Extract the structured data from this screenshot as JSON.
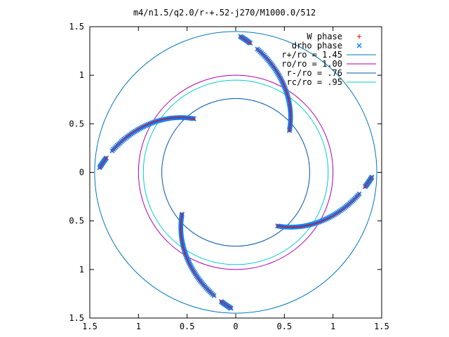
{
  "chart_data": {
    "type": "scatter",
    "title": "m4/n1.5/q2.0/r-+.52-j270/M1000.0/512",
    "xlim": [
      -1.5,
      1.5
    ],
    "ylim": [
      -1.5,
      1.5
    ],
    "x_tick_values": [
      -1.5,
      -1,
      -0.5,
      0,
      0.5,
      1,
      1.5
    ],
    "x_tick_labels": [
      "1.5",
      "1",
      "0.5",
      "0",
      "0.5",
      "1",
      "1.5"
    ],
    "y_tick_values": [
      1.5,
      1,
      0.5,
      0,
      -0.5,
      -1,
      -1.5
    ],
    "y_tick_labels": [
      "1.5",
      "1",
      "0.5",
      "0",
      "0.5",
      "1",
      "1.5"
    ],
    "grid": false,
    "legend_position": "top-right",
    "series": [
      {
        "name": "W phase",
        "marker": "plus",
        "color": "#ff0000"
      },
      {
        "name": "drho phase",
        "marker": "cross",
        "color": "#0080ff"
      }
    ],
    "circles": [
      {
        "name": "r+/ro = 1.45",
        "radius": 1.45,
        "color": "#0077bb"
      },
      {
        "name": "ro/ro = 1.00",
        "radius": 1.0,
        "color": "#b000b0"
      },
      {
        "name": "r-/ro = .76",
        "radius": 0.76,
        "color": "#0055aa"
      },
      {
        "name": "rc/ro = .95",
        "radius": 0.95,
        "color": "#00cccc"
      }
    ],
    "spiral_arms": [
      {
        "outer_angle_deg": 88,
        "inner_angle_deg": 38
      },
      {
        "outer_angle_deg": 178,
        "inner_angle_deg": 128
      },
      {
        "outer_angle_deg": 268,
        "inner_angle_deg": 218
      },
      {
        "outer_angle_deg": 358,
        "inner_angle_deg": 308
      }
    ],
    "arm_radius_outer": 1.4,
    "arm_radius_inner": 0.7
  }
}
